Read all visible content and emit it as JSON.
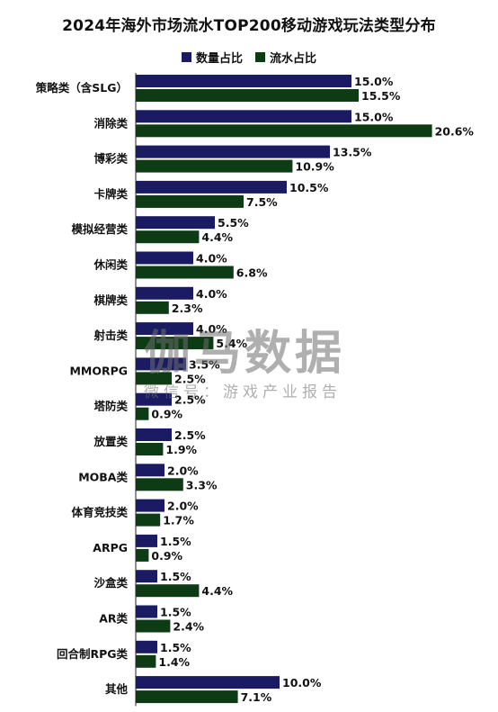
{
  "chart_data": {
    "type": "bar",
    "orientation": "horizontal",
    "title": "2024年海外市场流水TOP200移动游戏玩法类型分布",
    "legend_position": "top-center",
    "grid": false,
    "categories": [
      "策略类（含SLG）",
      "消除类",
      "博彩类",
      "卡牌类",
      "模拟经营类",
      "休闲类",
      "棋牌类",
      "射击类",
      "MMORPG",
      "塔防类",
      "放置类",
      "MOBA类",
      "体育竞技类",
      "ARPG",
      "沙盒类",
      "AR类",
      "回合制RPG类",
      "其他"
    ],
    "series": [
      {
        "name": "数量占比",
        "color": "#1b1b63",
        "values": [
          15.0,
          15.0,
          13.5,
          10.5,
          5.5,
          4.0,
          4.0,
          4.0,
          3.5,
          2.5,
          2.5,
          2.0,
          2.0,
          1.5,
          1.5,
          1.5,
          1.5,
          10.0
        ]
      },
      {
        "name": "流水占比",
        "color": "#0c3b14",
        "values": [
          15.5,
          20.6,
          10.9,
          7.5,
          4.4,
          6.8,
          2.3,
          5.4,
          2.5,
          0.9,
          1.9,
          3.3,
          1.7,
          0.9,
          4.4,
          2.4,
          1.4,
          7.1
        ]
      }
    ],
    "value_format": "%"
  },
  "watermark": {
    "main": "伽马数据",
    "sub": "微信号：游戏产业报告"
  }
}
